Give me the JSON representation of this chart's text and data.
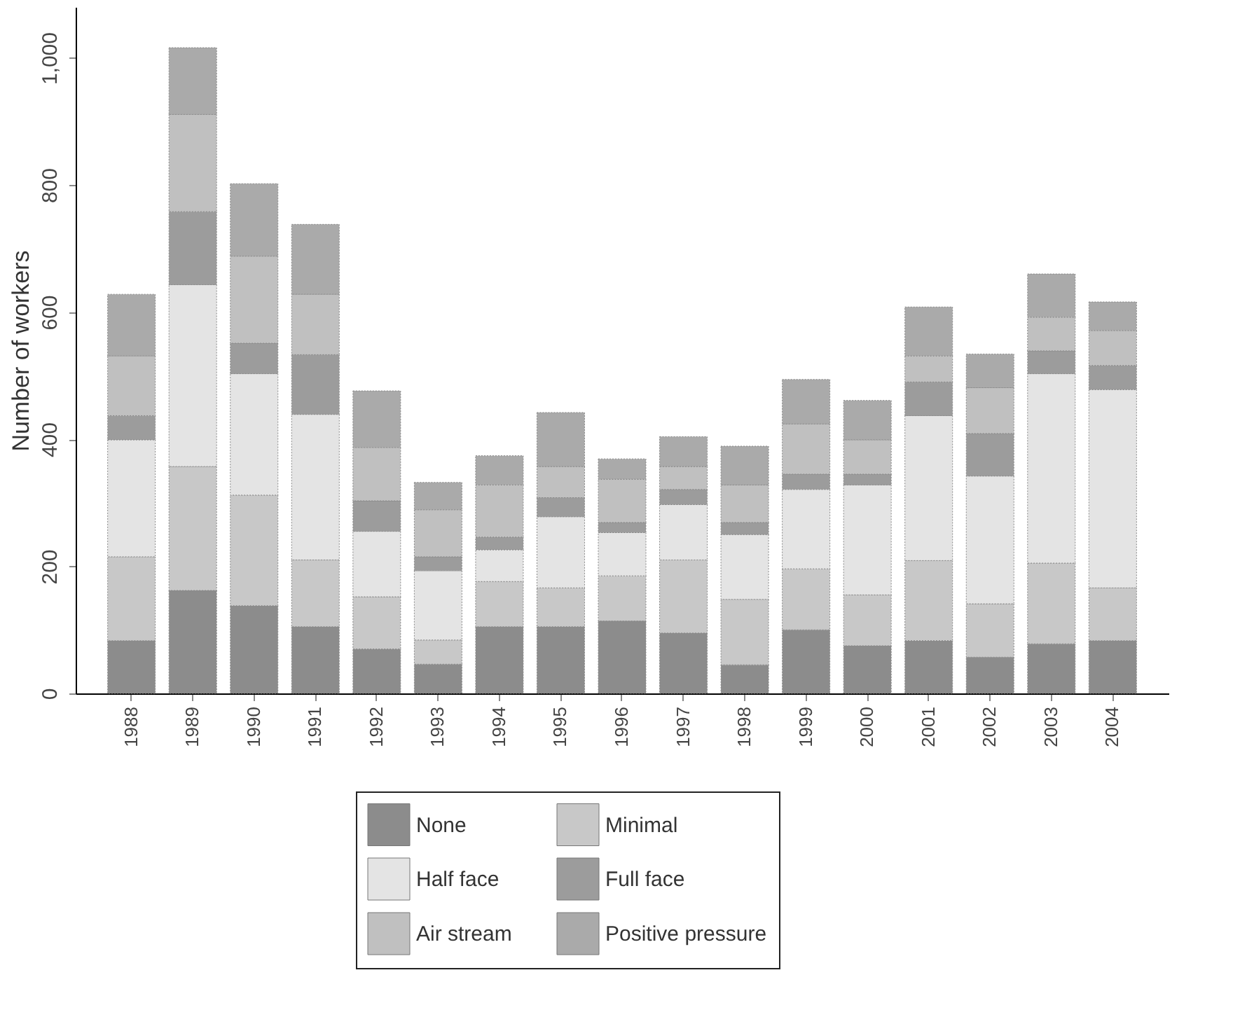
{
  "chart_data": {
    "type": "bar",
    "stacked": true,
    "ylabel": "Number of workers",
    "categories": [
      "1988",
      "1989",
      "1990",
      "1991",
      "1992",
      "1993",
      "1994",
      "1995",
      "1996",
      "1997",
      "1998",
      "1999",
      "2000",
      "2001",
      "2002",
      "2003",
      "2004"
    ],
    "series": [
      {
        "name": "None",
        "color": "#8c8c8c",
        "values": [
          83,
          162,
          138,
          105,
          70,
          46,
          105,
          105,
          114,
          95,
          45,
          100,
          75,
          83,
          57,
          78,
          83
        ]
      },
      {
        "name": "Minimal",
        "color": "#c8c8c8",
        "values": [
          132,
          195,
          174,
          105,
          82,
          38,
          71,
          61,
          71,
          115,
          103,
          96,
          80,
          126,
          84,
          127,
          83
        ]
      },
      {
        "name": "Half face",
        "color": "#e4e4e4",
        "values": [
          184,
          286,
          191,
          229,
          103,
          109,
          50,
          112,
          68,
          87,
          102,
          125,
          173,
          228,
          201,
          298,
          312
        ]
      },
      {
        "name": "Full face",
        "color": "#9c9c9c",
        "values": [
          38,
          115,
          48,
          94,
          48,
          22,
          20,
          30,
          16,
          24,
          19,
          24,
          17,
          53,
          67,
          36,
          38
        ]
      },
      {
        "name": "Air stream",
        "color": "#c0c0c0",
        "values": [
          94,
          153,
          137,
          95,
          84,
          74,
          82,
          49,
          68,
          36,
          59,
          79,
          54,
          41,
          72,
          53,
          55
        ]
      },
      {
        "name": "Positive pressure",
        "color": "#aaaaaa",
        "values": [
          97,
          105,
          114,
          110,
          89,
          43,
          46,
          85,
          32,
          47,
          61,
          70,
          62,
          77,
          53,
          68,
          45
        ]
      }
    ],
    "ylim": [
      0,
      1080
    ],
    "yticks": [
      0,
      200,
      400,
      600,
      800,
      {
        "value": 1000,
        "label": "1,000"
      }
    ],
    "grid": false,
    "legend": "bottom"
  }
}
